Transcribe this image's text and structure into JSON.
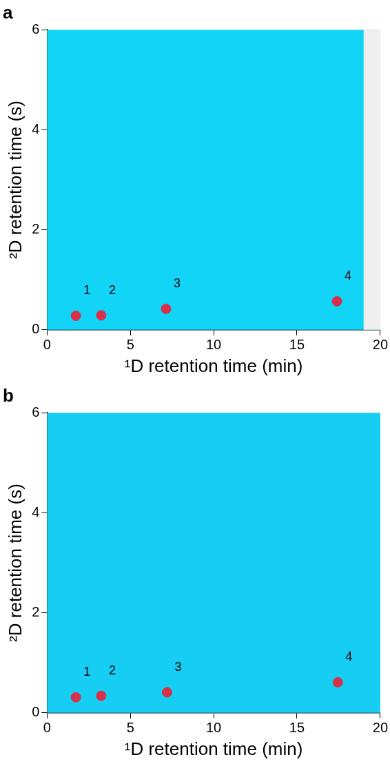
{
  "chart_data": [
    {
      "type": "scatter",
      "title": "a",
      "xlabel": "¹D retention time (min)",
      "ylabel": "²D retention time (s)",
      "xlim": [
        0,
        20
      ],
      "xticks": [
        0,
        5,
        10,
        15,
        20
      ],
      "ylim": [
        0,
        6
      ],
      "yticks": [
        0,
        2,
        4,
        6
      ],
      "grid": false,
      "legend": false,
      "marker": "circle",
      "series": [
        {
          "color": "#d8304a",
          "x": [
            1.73,
            3.25,
            7.14,
            17.4
          ],
          "values": [
            0.28,
            0.29,
            0.42,
            0.57
          ]
        }
      ],
      "bands": [
        {
          "axis": "x",
          "from": 19,
          "to": 20,
          "color": "#efefef"
        }
      ],
      "annotations": [
        {
          "text": "1",
          "x": 1.73,
          "y": 0.28
        },
        {
          "text": "2",
          "x": 3.25,
          "y": 0.29
        },
        {
          "text": "3",
          "x": 7.14,
          "y": 0.42
        },
        {
          "text": "4",
          "x": 17.4,
          "y": 0.57
        }
      ]
    },
    {
      "type": "scatter",
      "title": "b",
      "xlabel": "¹D retention time (min)",
      "ylabel": "²D retention time (s)",
      "xlim": [
        0,
        20
      ],
      "xticks": [
        0,
        5,
        10,
        15,
        20
      ],
      "ylim": [
        0,
        6
      ],
      "yticks": [
        0,
        2,
        4,
        6
      ],
      "grid": false,
      "legend": false,
      "marker": "circle",
      "series": [
        {
          "color": "#d8304a",
          "x": [
            1.73,
            3.25,
            7.2,
            17.45
          ],
          "values": [
            0.31,
            0.34,
            0.41,
            0.61
          ]
        }
      ],
      "annotations": [
        {
          "text": "1",
          "x": 1.73,
          "y": 0.31
        },
        {
          "text": "2",
          "x": 3.25,
          "y": 0.34
        },
        {
          "text": "3",
          "x": 7.2,
          "y": 0.41
        },
        {
          "text": "4",
          "x": 17.45,
          "y": 0.61
        }
      ]
    }
  ]
}
